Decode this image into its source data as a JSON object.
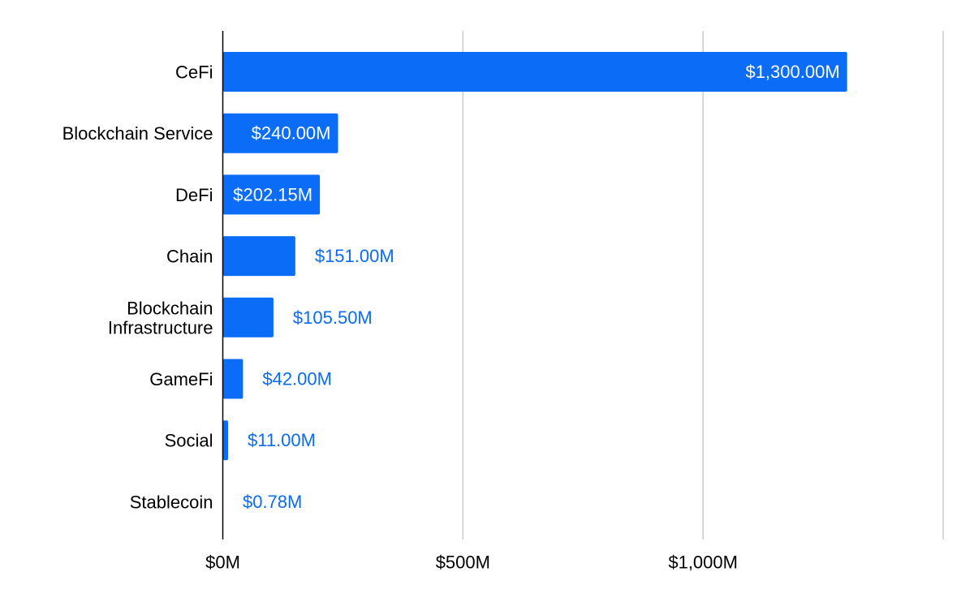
{
  "chart_data": {
    "type": "bar",
    "orientation": "horizontal",
    "title": "",
    "xlabel": "",
    "ylabel": "",
    "categories": [
      [
        "CeFi"
      ],
      [
        "Blockchain Service"
      ],
      [
        "DeFi"
      ],
      [
        "Chain"
      ],
      [
        "Blockchain",
        "Infrastructure"
      ],
      [
        "GameFi"
      ],
      [
        "Social"
      ],
      [
        "Stablecoin"
      ]
    ],
    "values": [
      1300,
      240,
      202.15,
      151,
      105.5,
      42,
      11,
      0.78
    ],
    "data_labels": [
      "$1,300.00M",
      "$240.00M",
      "$202.15M",
      "$151.00M",
      "$105.50M",
      "$42.00M",
      "$11.00M",
      "$0.78M"
    ],
    "xlim": [
      0,
      1500
    ],
    "xticks": [
      0,
      500,
      1000,
      1500
    ],
    "xtick_labels": [
      "$0M",
      "$500M",
      "$1,000M",
      ""
    ],
    "grid": true,
    "legend": "none",
    "colors": {
      "bar": "#0b6cf7",
      "label_inside": "#ffffff",
      "label_outside": "#0b6cf7",
      "grid": "#cccccc",
      "axis": "#000000"
    }
  }
}
